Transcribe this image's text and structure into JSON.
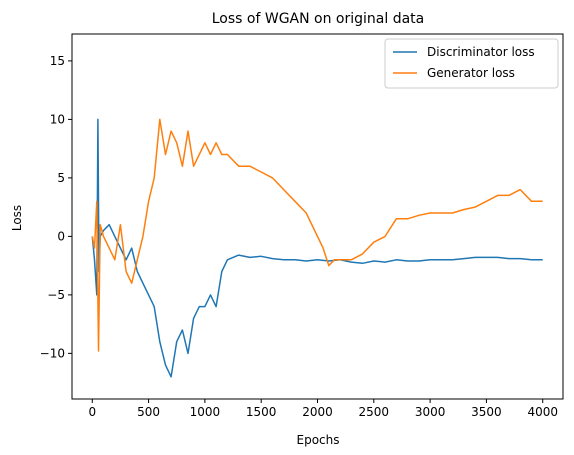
{
  "chart_data": {
    "type": "line",
    "title": "Loss of WGAN on original data",
    "xlabel": "Epochs",
    "ylabel": "Loss",
    "xlim": [
      -180,
      4180
    ],
    "ylim": [
      -13.9,
      17.3
    ],
    "xticks": [
      0,
      500,
      1000,
      1500,
      2000,
      2500,
      3000,
      3500,
      4000
    ],
    "yticks": [
      -10,
      -5,
      0,
      5,
      10,
      15
    ],
    "grid": false,
    "legend": "top-right",
    "series": [
      {
        "name": "Discriminator loss",
        "color": "#1f77b4",
        "x": [
          0,
          20,
          40,
          50,
          60,
          70,
          100,
          150,
          200,
          250,
          300,
          350,
          400,
          450,
          500,
          550,
          600,
          650,
          700,
          750,
          800,
          850,
          900,
          950,
          1000,
          1050,
          1100,
          1150,
          1200,
          1300,
          1400,
          1500,
          1600,
          1700,
          1800,
          1900,
          2000,
          2100,
          2200,
          2300,
          2400,
          2500,
          2600,
          2700,
          2800,
          2900,
          3000,
          3100,
          3200,
          3300,
          3400,
          3500,
          3600,
          3700,
          3800,
          3900,
          4000
        ],
        "y": [
          0,
          -2,
          -5,
          10,
          -3,
          0,
          0.5,
          1,
          0,
          -1,
          -2,
          -1,
          -3,
          -4,
          -5,
          -6,
          -9,
          -11,
          -12,
          -9,
          -8,
          -10,
          -7,
          -6,
          -6,
          -5,
          -6,
          -3,
          -2,
          -1.6,
          -1.8,
          -1.7,
          -1.9,
          -2,
          -2,
          -2.1,
          -2,
          -2.1,
          -2,
          -2.2,
          -2.3,
          -2.1,
          -2.2,
          -2,
          -2.1,
          -2.1,
          -2,
          -2,
          -2,
          -1.9,
          -1.8,
          -1.8,
          -1.8,
          -1.9,
          -1.9,
          -2,
          -2
        ]
      },
      {
        "name": "Generator loss",
        "color": "#ff7f0e",
        "x": [
          0,
          20,
          40,
          55,
          70,
          100,
          150,
          200,
          250,
          300,
          350,
          400,
          450,
          500,
          550,
          600,
          650,
          700,
          750,
          800,
          850,
          900,
          950,
          1000,
          1050,
          1100,
          1150,
          1200,
          1300,
          1400,
          1500,
          1600,
          1700,
          1800,
          1900,
          2000,
          2050,
          2100,
          2150,
          2200,
          2300,
          2400,
          2500,
          2600,
          2700,
          2800,
          2900,
          3000,
          3100,
          3200,
          3300,
          3400,
          3500,
          3600,
          3700,
          3800,
          3900,
          4000
        ],
        "y": [
          0,
          -1,
          3,
          -9.8,
          1,
          0,
          -1,
          -2,
          1,
          -3,
          -4,
          -2,
          0,
          3,
          5,
          10,
          7,
          9,
          8,
          6,
          9,
          6,
          7,
          8,
          7,
          8,
          7,
          7,
          6,
          6,
          5.5,
          5,
          4,
          3,
          2,
          0,
          -1,
          -2.5,
          -2,
          -2,
          -2,
          -1.5,
          -0.5,
          0,
          1.5,
          1.5,
          1.8,
          2,
          2,
          2,
          2.3,
          2.5,
          3,
          3.5,
          3.5,
          4,
          3,
          3
        ]
      }
    ]
  }
}
